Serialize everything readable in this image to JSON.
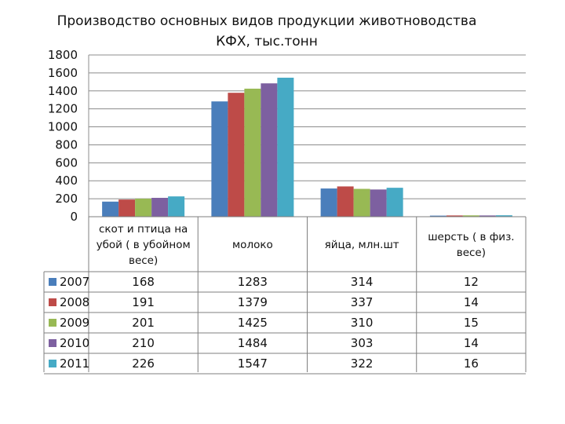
{
  "chart_data": {
    "type": "bar",
    "title_lines": [
      "Производство основных видов продукции животноводства",
      "КФХ, тыс.тонн"
    ],
    "categories": [
      [
        "скот и птица на",
        "убой ( в убойном",
        "весе)"
      ],
      [
        "молоко"
      ],
      [
        "яйца, млн.шт"
      ],
      [
        "шерсть ( в физ.",
        "весе)"
      ]
    ],
    "series": [
      {
        "name": "2007",
        "values": [
          168,
          1283,
          314,
          12
        ],
        "labels": [
          "168",
          "1283",
          "314",
          "12"
        ],
        "color": "#4A7EBB"
      },
      {
        "name": "2008",
        "values": [
          191,
          1379,
          337,
          14
        ],
        "labels": [
          "191",
          "1379",
          "337",
          "14"
        ],
        "color": "#BE4B48"
      },
      {
        "name": "2009",
        "values": [
          201,
          1425,
          310,
          15
        ],
        "labels": [
          "201",
          "1425",
          "310",
          "15"
        ],
        "color": "#98B954"
      },
      {
        "name": "2010",
        "values": [
          210,
          1484,
          303,
          14
        ],
        "labels": [
          "210",
          "1484",
          "303",
          "14"
        ],
        "color": "#7D60A0"
      },
      {
        "name": "2011",
        "values": [
          226,
          1547,
          322,
          16
        ],
        "labels": [
          "226",
          "1547",
          "322",
          "16"
        ],
        "color": "#46AAC5"
      }
    ],
    "yticks": [
      "0",
      "200",
      "400",
      "600",
      "800",
      "1000",
      "1200",
      "1400",
      "1600",
      "1800"
    ],
    "ylim": [
      0,
      1800
    ],
    "grid": true,
    "legend": "data-table"
  }
}
